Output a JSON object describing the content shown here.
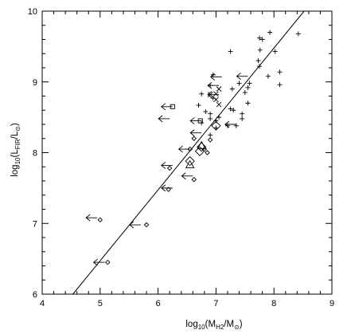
{
  "chart_data": {
    "type": "scatter",
    "title": "",
    "xlabel": "log10(MH2/M⊙)",
    "ylabel": "log10(LFIR/L⊙)",
    "xlabel_parts": {
      "pre": "log",
      "base": "10",
      "open": "(M",
      "sub": "H2",
      "mid": "/M",
      "sun": "⊙",
      "close": ")"
    },
    "ylabel_parts": {
      "pre": "log",
      "base": "10",
      "open": "(L",
      "sub": "FIR",
      "mid": "/L",
      "sun": "⊙",
      "close": ")"
    },
    "xlim": [
      4,
      9
    ],
    "ylim": [
      6,
      10
    ],
    "xticks": [
      "4",
      "5",
      "6",
      "7",
      "8",
      "9"
    ],
    "yticks": [
      "6",
      "7",
      "8",
      "9",
      "10"
    ],
    "fit_line": {
      "x": [
        4.53,
        8.52
      ],
      "y": [
        6.0,
        10.0
      ]
    },
    "series": [
      {
        "marker": "plus",
        "points": [
          [
            7.25,
            9.43
          ],
          [
            7.8,
            9.6
          ],
          [
            7.75,
            9.62
          ],
          [
            7.93,
            9.7
          ],
          [
            8.42,
            9.68
          ],
          [
            7.76,
            9.45
          ],
          [
            7.73,
            9.3
          ],
          [
            7.75,
            9.22
          ],
          [
            8.02,
            9.43
          ],
          [
            7.9,
            9.08
          ],
          [
            8.1,
            9.14
          ],
          [
            8.1,
            8.96
          ],
          [
            7.4,
            8.98
          ],
          [
            7.55,
            8.92
          ],
          [
            7.58,
            8.98
          ],
          [
            7.28,
            8.9
          ],
          [
            6.9,
            8.95
          ],
          [
            6.75,
            8.83
          ],
          [
            6.95,
            8.77
          ],
          [
            7.5,
            8.85
          ],
          [
            7.3,
            8.6
          ],
          [
            7.25,
            8.62
          ],
          [
            7.55,
            8.7
          ],
          [
            7.45,
            8.55
          ],
          [
            7.45,
            8.48
          ],
          [
            6.7,
            8.67
          ],
          [
            6.82,
            8.58
          ],
          [
            6.9,
            8.55
          ],
          [
            7.05,
            8.5
          ],
          [
            7.2,
            8.38
          ],
          [
            7.35,
            8.38
          ],
          [
            7.0,
            8.45
          ],
          [
            6.9,
            8.48
          ],
          [
            6.75,
            8.42
          ],
          [
            7.0,
            8.35
          ],
          [
            6.9,
            8.25
          ],
          [
            6.95,
            9.1
          ]
        ]
      },
      {
        "marker": "cross",
        "points": [
          [
            7.05,
            8.9
          ],
          [
            7.0,
            8.83
          ],
          [
            7.0,
            8.75
          ],
          [
            7.05,
            8.68
          ],
          [
            6.9,
            8.82
          ]
        ]
      },
      {
        "marker": "small-diamond",
        "points": [
          [
            5.13,
            6.45
          ],
          [
            5.0,
            7.05
          ],
          [
            5.8,
            6.98
          ],
          [
            6.18,
            7.48
          ],
          [
            6.2,
            7.78
          ],
          [
            6.62,
            7.62
          ],
          [
            6.55,
            8.05
          ],
          [
            6.85,
            8.0
          ],
          [
            6.62,
            8.2
          ],
          [
            6.9,
            8.18
          ],
          [
            6.8,
            8.05
          ]
        ]
      },
      {
        "marker": "large-diamond",
        "points": [
          [
            7.0,
            8.38
          ],
          [
            6.55,
            7.88
          ],
          [
            6.72,
            8.02
          ],
          [
            6.75,
            8.08
          ]
        ]
      },
      {
        "marker": "triangle",
        "points": [
          [
            6.55,
            7.83
          ],
          [
            6.75,
            8.1
          ]
        ]
      },
      {
        "marker": "square",
        "points": [
          [
            6.25,
            8.65
          ],
          [
            6.73,
            8.45
          ]
        ]
      },
      {
        "marker": "upper-limit-arrow",
        "points": [
          [
            5.08,
            6.45
          ],
          [
            4.95,
            7.08
          ],
          [
            5.7,
            6.98
          ],
          [
            6.25,
            7.5
          ],
          [
            6.25,
            7.82
          ],
          [
            6.6,
            7.67
          ],
          [
            6.55,
            8.05
          ],
          [
            6.2,
            8.48
          ],
          [
            6.25,
            8.65
          ],
          [
            6.75,
            8.28
          ],
          [
            7.05,
            8.82
          ],
          [
            7.05,
            8.95
          ],
          [
            7.1,
            9.07
          ],
          [
            7.55,
            9.08
          ],
          [
            7.35,
            8.4
          ],
          [
            6.75,
            8.45
          ]
        ]
      }
    ]
  }
}
